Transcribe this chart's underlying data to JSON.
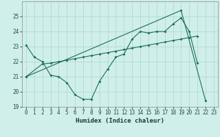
{
  "background_color": "#d0eeea",
  "grid_color": "#a8d8d0",
  "line_color": "#1a6b5e",
  "xlim": [
    -0.5,
    23.5
  ],
  "ylim": [
    19.0,
    26.0
  ],
  "yticks": [
    19,
    20,
    21,
    22,
    23,
    24,
    25
  ],
  "xlabel": "Humidex (Indice chaleur)",
  "line1_x": [
    0,
    1,
    2,
    3,
    4,
    5,
    6,
    7,
    8,
    9,
    10,
    11,
    12,
    13,
    14,
    15,
    16,
    17,
    18,
    19,
    20,
    21
  ],
  "line1_y": [
    23.1,
    22.3,
    22.0,
    21.1,
    21.0,
    20.6,
    19.8,
    19.5,
    19.5,
    20.7,
    21.5,
    22.3,
    22.5,
    23.5,
    24.0,
    23.9,
    24.0,
    24.0,
    24.5,
    24.9,
    24.0,
    21.9
  ],
  "line2_x": [
    0,
    2,
    3,
    4,
    5,
    6,
    7,
    8,
    9,
    10,
    11,
    12,
    13,
    14,
    15,
    16,
    17,
    18,
    19,
    20,
    21
  ],
  "line2_y": [
    21.0,
    21.85,
    21.9,
    22.0,
    22.1,
    22.2,
    22.3,
    22.4,
    22.5,
    22.6,
    22.7,
    22.8,
    22.9,
    23.0,
    23.1,
    23.2,
    23.3,
    23.4,
    23.5,
    23.6,
    23.7
  ],
  "line3_x": [
    0,
    19,
    22
  ],
  "line3_y": [
    21.0,
    25.4,
    19.4
  ],
  "marker_size": 2.0,
  "line_width": 0.8,
  "tick_fontsize": 5.5,
  "xlabel_fontsize": 6.5
}
